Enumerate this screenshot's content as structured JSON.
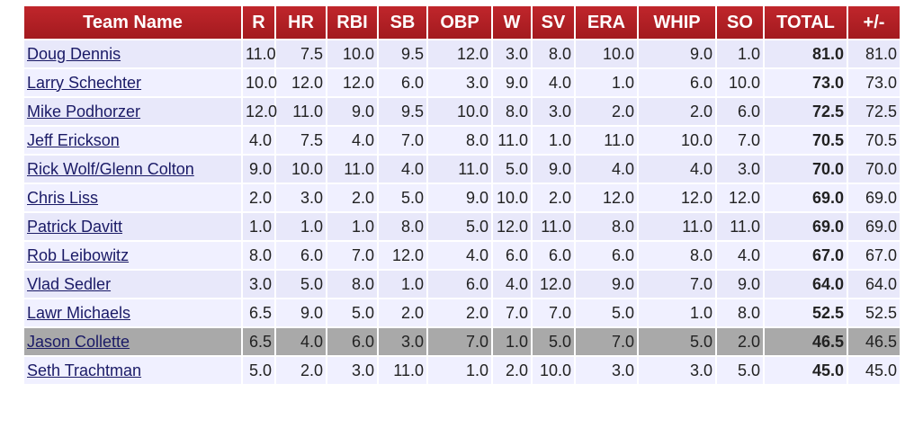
{
  "table": {
    "header": [
      "Team Name",
      "R",
      "HR",
      "RBI",
      "SB",
      "OBP",
      "W",
      "SV",
      "ERA",
      "WHIP",
      "SO",
      "TOTAL",
      "+/-"
    ],
    "rows": [
      [
        "Doug Dennis",
        "11.0",
        "7.5",
        "10.0",
        "9.5",
        "12.0",
        "3.0",
        "8.0",
        "10.0",
        "9.0",
        "1.0",
        "81.0",
        "81.0"
      ],
      [
        "Larry Schechter",
        "10.0",
        "12.0",
        "12.0",
        "6.0",
        "3.0",
        "9.0",
        "4.0",
        "1.0",
        "6.0",
        "10.0",
        "73.0",
        "73.0"
      ],
      [
        "Mike Podhorzer",
        "12.0",
        "11.0",
        "9.0",
        "9.5",
        "10.0",
        "8.0",
        "3.0",
        "2.0",
        "2.0",
        "6.0",
        "72.5",
        "72.5"
      ],
      [
        "Jeff Erickson",
        "4.0",
        "7.5",
        "4.0",
        "7.0",
        "8.0",
        "11.0",
        "1.0",
        "11.0",
        "10.0",
        "7.0",
        "70.5",
        "70.5"
      ],
      [
        "Rick Wolf/Glenn Colton",
        "9.0",
        "10.0",
        "11.0",
        "4.0",
        "11.0",
        "5.0",
        "9.0",
        "4.0",
        "4.0",
        "3.0",
        "70.0",
        "70.0"
      ],
      [
        "Chris Liss",
        "2.0",
        "3.0",
        "2.0",
        "5.0",
        "9.0",
        "10.0",
        "2.0",
        "12.0",
        "12.0",
        "12.0",
        "69.0",
        "69.0"
      ],
      [
        "Patrick Davitt",
        "1.0",
        "1.0",
        "1.0",
        "8.0",
        "5.0",
        "12.0",
        "11.0",
        "8.0",
        "11.0",
        "11.0",
        "69.0",
        "69.0"
      ],
      [
        "Rob Leibowitz",
        "8.0",
        "6.0",
        "7.0",
        "12.0",
        "4.0",
        "6.0",
        "6.0",
        "6.0",
        "8.0",
        "4.0",
        "67.0",
        "67.0"
      ],
      [
        "Vlad Sedler",
        "3.0",
        "5.0",
        "8.0",
        "1.0",
        "6.0",
        "4.0",
        "12.0",
        "9.0",
        "7.0",
        "9.0",
        "64.0",
        "64.0"
      ],
      [
        "Lawr Michaels",
        "6.5",
        "9.0",
        "5.0",
        "2.0",
        "2.0",
        "7.0",
        "7.0",
        "5.0",
        "1.0",
        "8.0",
        "52.5",
        "52.5"
      ],
      [
        "Jason Collette",
        "6.5",
        "4.0",
        "6.0",
        "3.0",
        "7.0",
        "1.0",
        "5.0",
        "7.0",
        "5.0",
        "2.0",
        "46.5",
        "46.5"
      ],
      [
        "Seth Trachtman",
        "5.0",
        "2.0",
        "3.0",
        "11.0",
        "1.0",
        "2.0",
        "10.0",
        "3.0",
        "3.0",
        "5.0",
        "45.0",
        "45.0"
      ]
    ]
  }
}
